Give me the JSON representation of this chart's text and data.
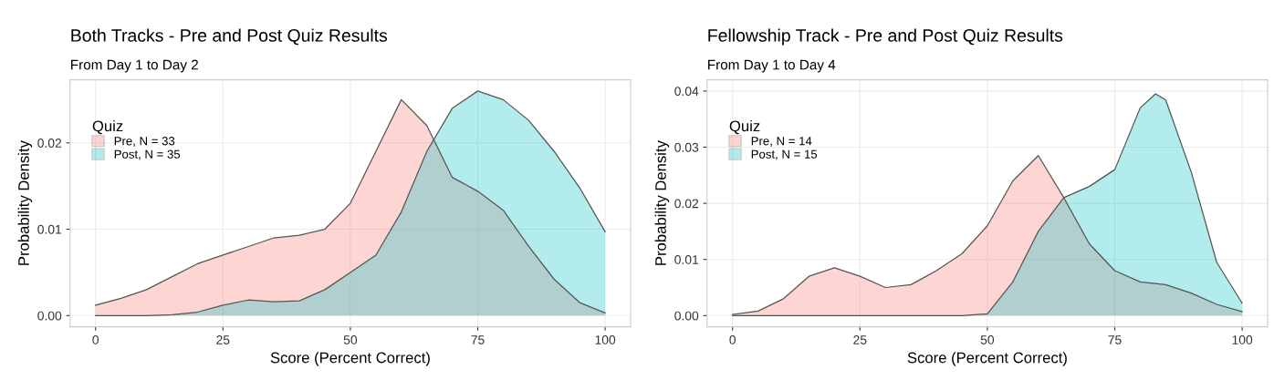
{
  "chart_data": [
    {
      "type": "area",
      "title": "Both Tracks - Pre and Post Quiz Results",
      "subtitle": "From Day 1 to Day 2",
      "xlabel": "Score (Percent Correct)",
      "ylabel": "Probability Density",
      "legend_title": "Quiz",
      "x": [
        0,
        5,
        10,
        15,
        20,
        25,
        30,
        35,
        40,
        45,
        50,
        55,
        60,
        65,
        70,
        75,
        80,
        85,
        90,
        95,
        100
      ],
      "series": [
        {
          "name": "Pre, N = 33",
          "color": "#f8766d",
          "values": [
            0.0012,
            0.002,
            0.003,
            0.0045,
            0.006,
            0.007,
            0.008,
            0.009,
            0.0093,
            0.01,
            0.013,
            0.019,
            0.025,
            0.022,
            0.016,
            0.0144,
            0.0122,
            0.008,
            0.0042,
            0.0015,
            0.0003
          ]
        },
        {
          "name": "Post, N = 35",
          "color": "#00bfc4",
          "values": [
            0,
            0,
            0,
            0.0001,
            0.0004,
            0.0012,
            0.0018,
            0.0016,
            0.0017,
            0.003,
            0.005,
            0.007,
            0.012,
            0.019,
            0.024,
            0.026,
            0.025,
            0.0226,
            0.019,
            0.0148,
            0.0097
          ]
        }
      ],
      "xlim": [
        -5,
        105
      ],
      "xticks": [
        0,
        25,
        50,
        75,
        100
      ],
      "ylim": [
        -0.0013,
        0.0273
      ],
      "yticks": [
        {
          "value": 0,
          "label": "0.00"
        },
        {
          "value": 0.01,
          "label": "0.01"
        },
        {
          "value": 0.02,
          "label": "0.02"
        }
      ],
      "grid": true,
      "legend": "top left"
    },
    {
      "type": "area",
      "title": "Fellowship Track - Pre and Post Quiz Results",
      "subtitle": "From Day 1 to Day 4",
      "xlabel": "Score (Percent Correct)",
      "ylabel": "Probability Density",
      "legend_title": "Quiz",
      "x": [
        0,
        5,
        10,
        15,
        20,
        25,
        30,
        35,
        40,
        45,
        50,
        55,
        60,
        65,
        70,
        75,
        80,
        83,
        85,
        90,
        95,
        100
      ],
      "series": [
        {
          "name": "Pre, N = 14",
          "color": "#f8766d",
          "values": [
            0.0002,
            0.0008,
            0.003,
            0.007,
            0.0085,
            0.007,
            0.005,
            0.0055,
            0.008,
            0.011,
            0.016,
            0.024,
            0.0285,
            0.021,
            0.0128,
            0.008,
            0.006,
            0.0057,
            0.0055,
            0.004,
            0.002,
            0.0007
          ]
        },
        {
          "name": "Post, N = 15",
          "color": "#00bfc4",
          "values": [
            0,
            0,
            0,
            0,
            0,
            0,
            0,
            0,
            0,
            0,
            0.0003,
            0.006,
            0.015,
            0.021,
            0.023,
            0.026,
            0.037,
            0.0395,
            0.0384,
            0.0256,
            0.0095,
            0.0022
          ]
        }
      ],
      "xlim": [
        -5,
        105
      ],
      "xticks": [
        0,
        25,
        50,
        75,
        100
      ],
      "ylim": [
        -0.002,
        0.042
      ],
      "yticks": [
        {
          "value": 0,
          "label": "0.00"
        },
        {
          "value": 0.01,
          "label": "0.01"
        },
        {
          "value": 0.02,
          "label": "0.02"
        },
        {
          "value": 0.03,
          "label": "0.03"
        },
        {
          "value": 0.04,
          "label": "0.04"
        }
      ],
      "grid": true,
      "legend": "top left"
    }
  ]
}
